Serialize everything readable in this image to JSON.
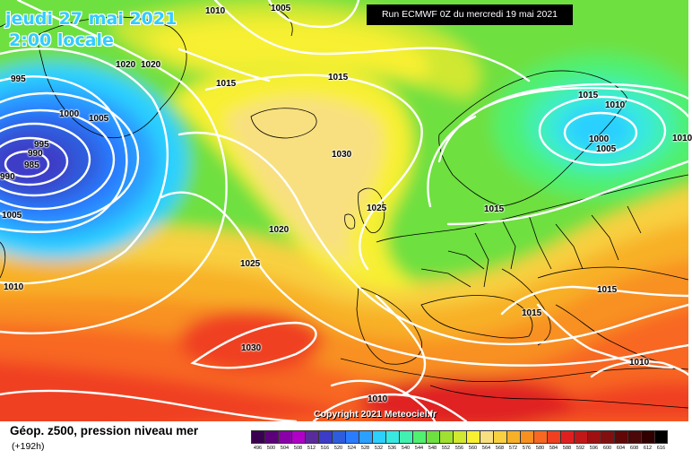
{
  "header": {
    "date": "jeudi 27 mai 2021",
    "time": "2:00 locale",
    "run": "Run ECMWF 0Z du mercredi 19 mai 2021"
  },
  "copyright": "Copyright 2021 Meteociel.fr",
  "footer": {
    "title": "Géop. z500, pression niveau mer",
    "lead": "(+192h)"
  },
  "legend": {
    "ticks": [
      "496",
      "500",
      "504",
      "508",
      "512",
      "516",
      "520",
      "524",
      "528",
      "532",
      "536",
      "540",
      "544",
      "548",
      "552",
      "556",
      "560",
      "564",
      "568",
      "572",
      "576",
      "580",
      "584",
      "588",
      "592",
      "596",
      "600",
      "604",
      "608",
      "612",
      "616"
    ],
    "colors": [
      "#3a0050",
      "#5c007a",
      "#8a00a8",
      "#b000c8",
      "#5a2b9a",
      "#3c3cc8",
      "#2d5cdc",
      "#2a7cff",
      "#2ba0ff",
      "#2bd0ff",
      "#39e8e0",
      "#42f0b0",
      "#50f070",
      "#6ee040",
      "#a0e030",
      "#d0e830",
      "#f8f030",
      "#f8e080",
      "#f8d040",
      "#f8b028",
      "#f89020",
      "#f86820",
      "#f04020",
      "#e02020",
      "#c01818",
      "#a01010",
      "#801010",
      "#600808",
      "#4a0808",
      "#300000",
      "#000000"
    ]
  },
  "isobars": {
    "values": [
      "1010",
      "1005",
      "995",
      "1020",
      "1020",
      "1015",
      "1000",
      "1005",
      "995",
      "990",
      "985",
      "990",
      "1005",
      "1010",
      "1015",
      "1030",
      "1025",
      "1015",
      "1010",
      "1000",
      "1005",
      "1010",
      "1015",
      "1020",
      "1025",
      "1015",
      "1015",
      "1010",
      "1030",
      "1010"
    ],
    "ids": [
      "top-1010",
      "top-1005",
      "left-995",
      "green-1020",
      "green-1020b",
      "greenland-1015",
      "low-1000",
      "low-1005",
      "low-995",
      "low-990",
      "low-985",
      "low-990-edge",
      "left-1005",
      "left-1010",
      "top-1015",
      "center-1030",
      "bay-1025",
      "scan-1015",
      "scan-1010",
      "scan-1000",
      "scan-1005",
      "edge-1010",
      "europe-1015",
      "atl-1020",
      "atl-1025",
      "east-1015",
      "med-1015",
      "east-1010",
      "az-1030",
      "bottom-1010"
    ]
  }
}
